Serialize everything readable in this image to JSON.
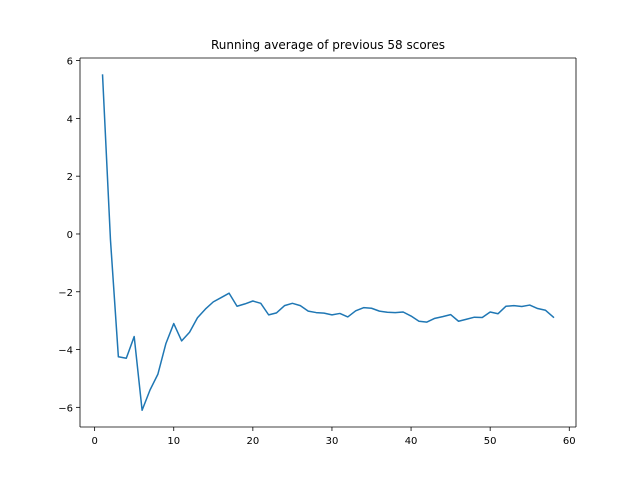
{
  "chart_data": {
    "type": "line",
    "title": "Running average of previous 58 scores",
    "xlabel": "",
    "ylabel": "",
    "xlim": [
      -1.85,
      60.85
    ],
    "ylim": [
      -6.68,
      6.09
    ],
    "xticks": [
      0,
      10,
      20,
      30,
      40,
      50,
      60
    ],
    "yticks": [
      -6,
      -4,
      -2,
      0,
      2,
      4,
      6
    ],
    "grid": false,
    "legend": "none",
    "line_color": "#1f77b4",
    "series": [
      {
        "name": "running average",
        "x": [
          1,
          2,
          3,
          4,
          5,
          6,
          7,
          8,
          9,
          10,
          11,
          12,
          13,
          14,
          15,
          16,
          17,
          18,
          19,
          20,
          21,
          22,
          23,
          24,
          25,
          26,
          27,
          28,
          29,
          30,
          31,
          32,
          33,
          34,
          35,
          36,
          37,
          38,
          39,
          40,
          41,
          42,
          43,
          44,
          45,
          46,
          47,
          48,
          49,
          50,
          51,
          52,
          53,
          54,
          55,
          56,
          57,
          58
        ],
        "values": [
          5.5,
          -0.2,
          -4.25,
          -4.3,
          -3.55,
          -6.1,
          -5.4,
          -4.85,
          -3.8,
          -3.1,
          -3.7,
          -3.4,
          -2.9,
          -2.6,
          -2.35,
          -2.2,
          -2.05,
          -2.5,
          -2.42,
          -2.32,
          -2.4,
          -2.8,
          -2.73,
          -2.48,
          -2.4,
          -2.48,
          -2.67,
          -2.72,
          -2.74,
          -2.8,
          -2.75,
          -2.87,
          -2.66,
          -2.55,
          -2.57,
          -2.67,
          -2.71,
          -2.72,
          -2.7,
          -2.84,
          -3.02,
          -3.05,
          -2.92,
          -2.86,
          -2.79,
          -3.02,
          -2.95,
          -2.88,
          -2.89,
          -2.7,
          -2.76,
          -2.5,
          -2.48,
          -2.51,
          -2.46,
          -2.58,
          -2.64,
          -2.88
        ]
      }
    ]
  }
}
